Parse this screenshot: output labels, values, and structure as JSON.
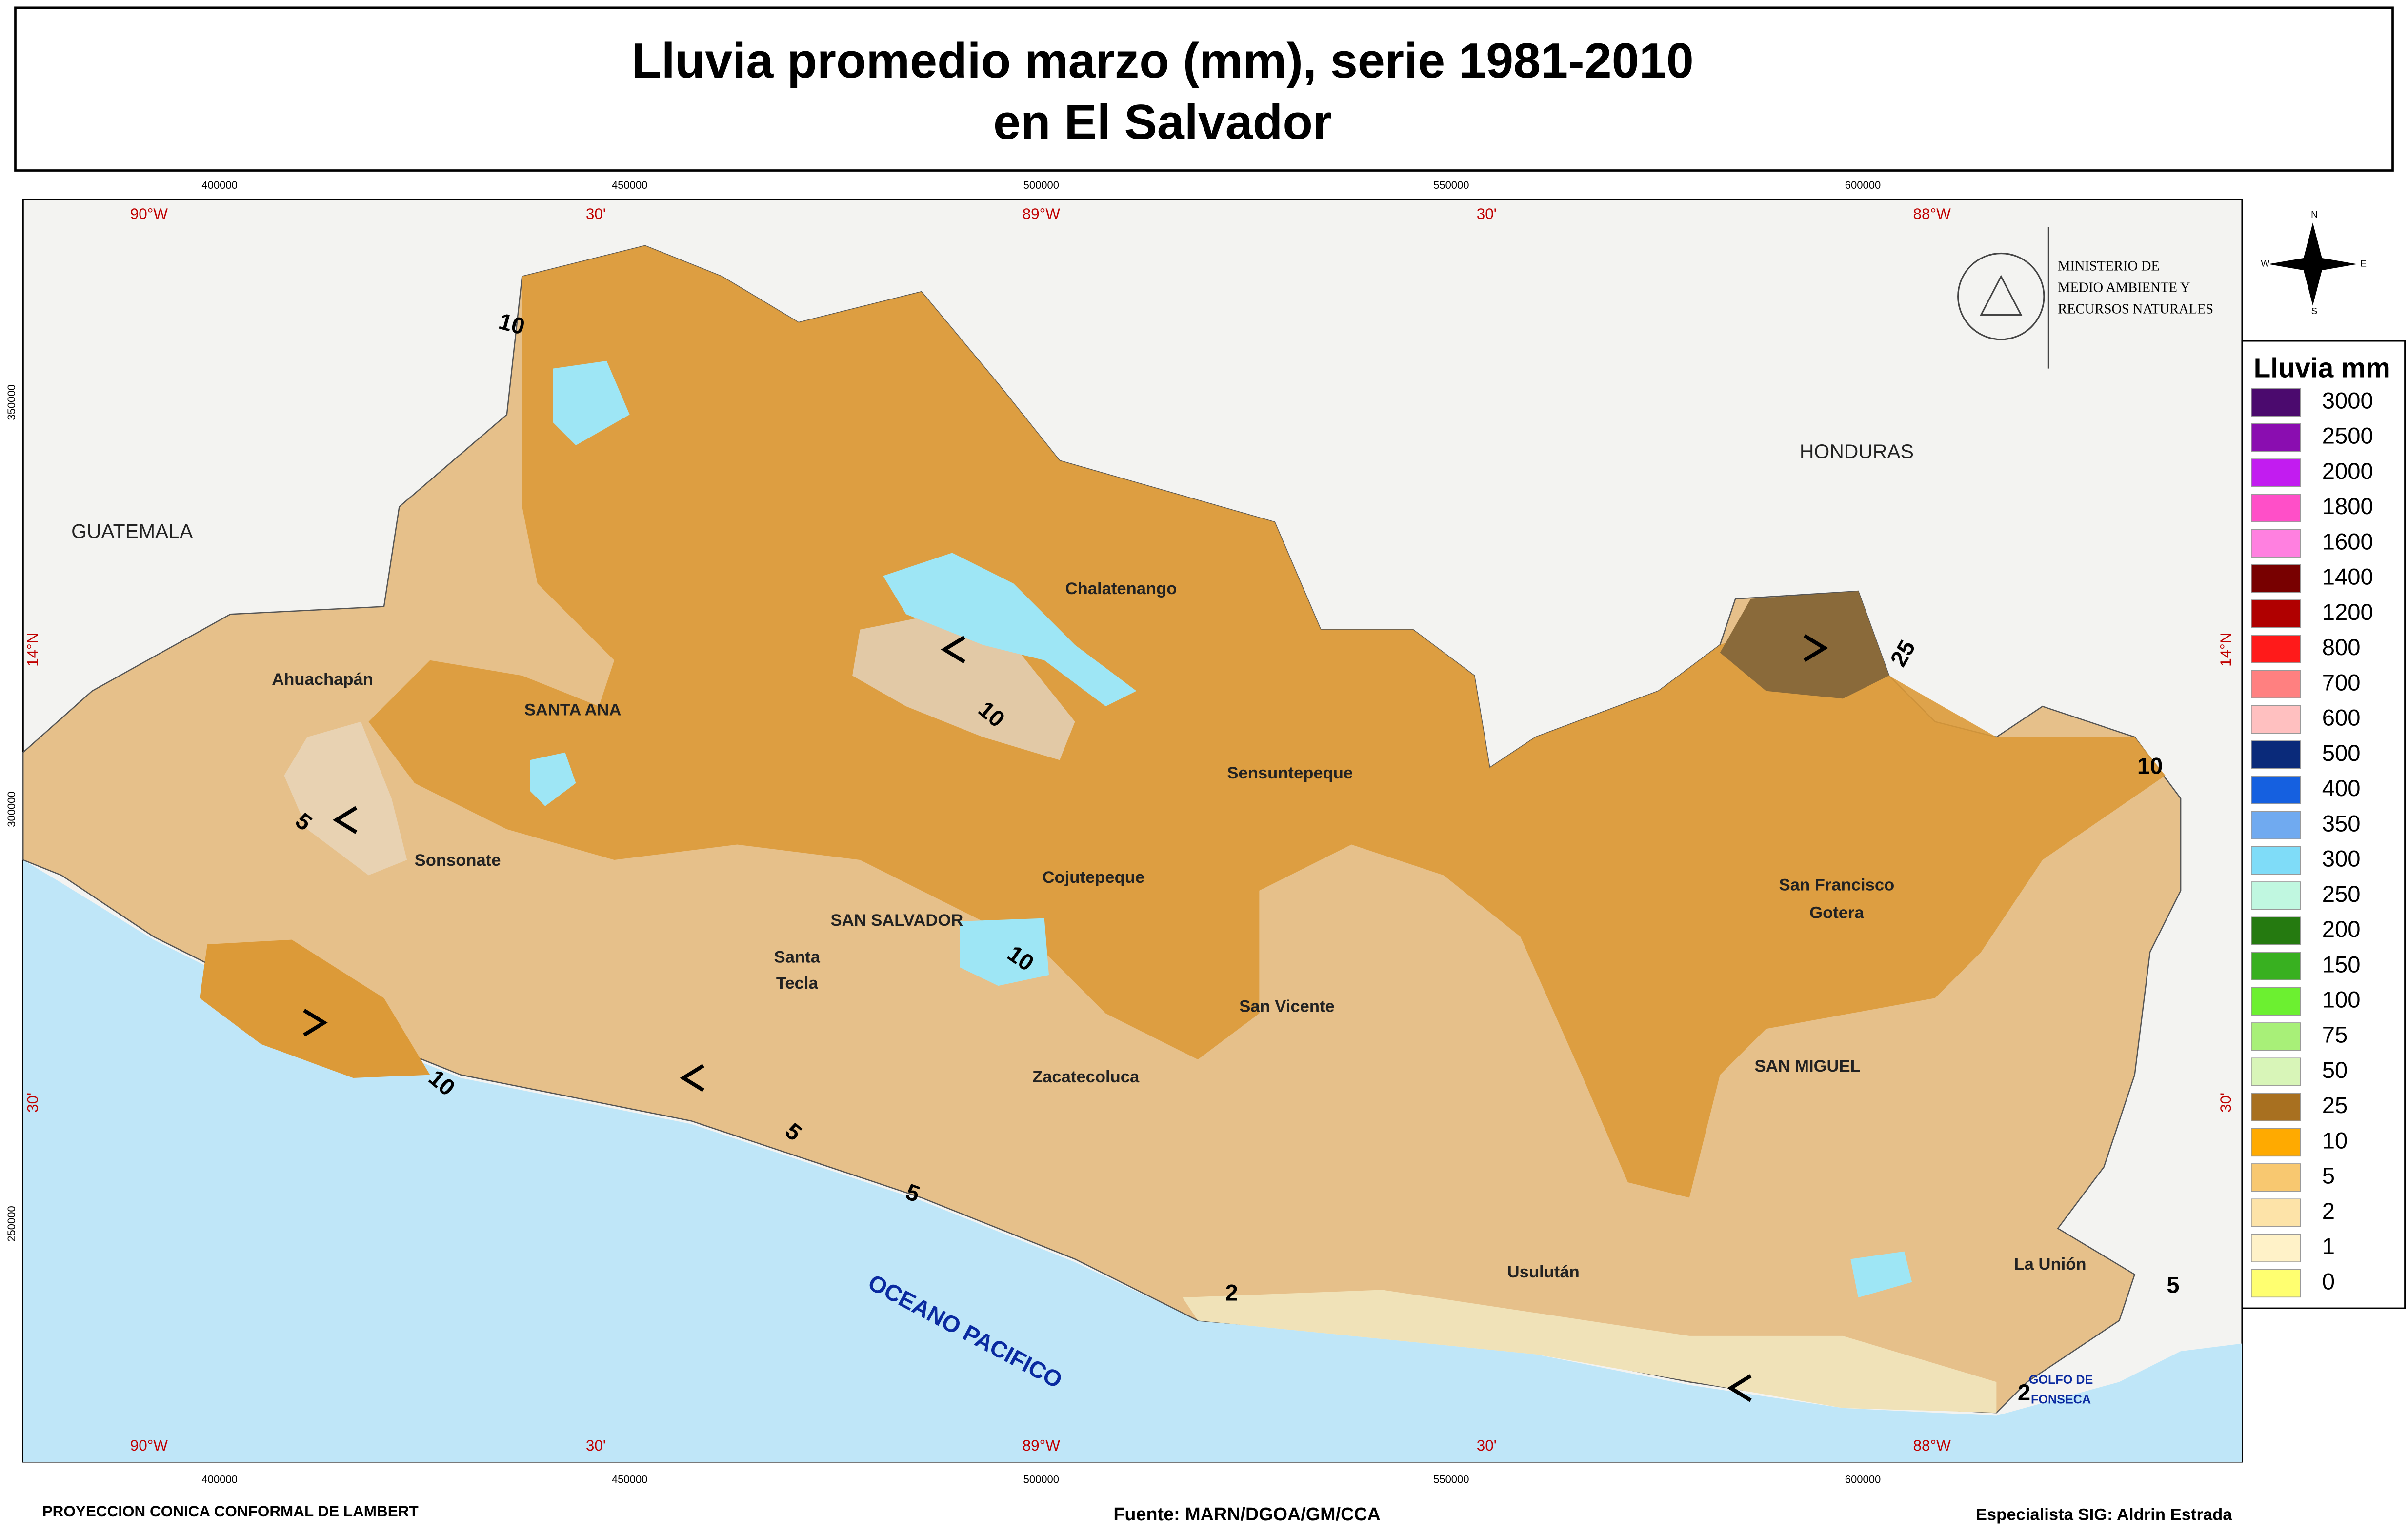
{
  "title": [
    "Lluvia promedio marzo (mm), serie 1981-2010",
    "en El Salvador"
  ],
  "grid": {
    "longitudes": [
      "90°W",
      "30'",
      "89°W",
      "30'",
      "88°W"
    ],
    "eastings": [
      "400000",
      "450000",
      "500000",
      "550000",
      "600000"
    ],
    "latitudes": [
      "14°N",
      "30'"
    ],
    "northings": [
      "350000",
      "300000",
      "250000"
    ]
  },
  "institution": [
    "MINISTERIO DE",
    "MEDIO AMBIENTE Y",
    "RECURSOS NATURALES"
  ],
  "compass": [
    "N",
    "E",
    "S",
    "W"
  ],
  "places": [
    "GUATEMALA",
    "HONDURAS",
    "Ahuachapán",
    "SANTA ANA",
    "Sonsonate",
    "Chalatenango",
    "Sensuntepeque",
    "Cojutepeque",
    "SAN SALVADOR",
    "Santa",
    "Tecla",
    "San Vicente",
    "Zacatecoluca",
    "San Francisco",
    "Gotera",
    "SAN MIGUEL",
    "Usulután",
    "La Unión",
    "OCEANO PACIFICO",
    "GOLFO DE",
    "FONSECA"
  ],
  "contours": [
    10,
    10,
    10,
    10,
    10,
    25,
    5,
    5,
    5,
    5,
    2,
    2
  ],
  "legend": {
    "title": "Lluvia mm",
    "items": [
      {
        "label": 3000,
        "color": "#4b0a6e"
      },
      {
        "label": 2500,
        "color": "#8a0db0"
      },
      {
        "label": 2000,
        "color": "#c21cf0"
      },
      {
        "label": 1800,
        "color": "#ff4fc8"
      },
      {
        "label": 1600,
        "color": "#ff80e0"
      },
      {
        "label": 1400,
        "color": "#780000"
      },
      {
        "label": 1200,
        "color": "#b00000"
      },
      {
        "label": 800,
        "color": "#ff1a1a"
      },
      {
        "label": 700,
        "color": "#ff8080"
      },
      {
        "label": 600,
        "color": "#ffc0c0"
      },
      {
        "label": 500,
        "color": "#0a2a7a"
      },
      {
        "label": 400,
        "color": "#1560e0"
      },
      {
        "label": 350,
        "color": "#70aaf0"
      },
      {
        "label": 300,
        "color": "#7fdcf8"
      },
      {
        "label": 250,
        "color": "#c0f7e0"
      },
      {
        "label": 200,
        "color": "#257a10"
      },
      {
        "label": 150,
        "color": "#38b020"
      },
      {
        "label": 100,
        "color": "#6cf030"
      },
      {
        "label": 75,
        "color": "#a8f078"
      },
      {
        "label": 50,
        "color": "#d8f5b8"
      },
      {
        "label": 25,
        "color": "#a87020"
      },
      {
        "label": 10,
        "color": "#ffaa00"
      },
      {
        "label": 5,
        "color": "#f8c870"
      },
      {
        "label": 2,
        "color": "#fde3a8"
      },
      {
        "label": 1,
        "color": "#fff2c8"
      },
      {
        "label": 0,
        "color": "#ffff70"
      }
    ]
  },
  "footer": [
    "PROYECCION CONICA CONFORMAL DE LAMBERT",
    "Fuente: MARN/DGOA/GM/CCA",
    "Especialista SIG: Aldrin Estrada"
  ]
}
